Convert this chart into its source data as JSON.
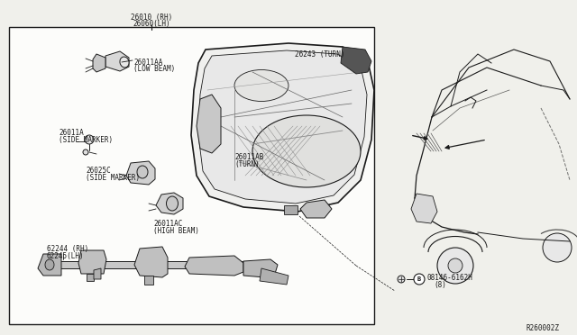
{
  "bg_color": "#f0f0eb",
  "box_bg": "#ffffff",
  "line_color": "#1a1a1a",
  "text_color": "#1a1a1a",
  "font_size": 5.5,
  "ref_number": "R260002Z",
  "labels": {
    "top": [
      "26010 (RH)",
      "26060(LH)"
    ],
    "low_beam": [
      "26011AA",
      "(LOW BEAM)"
    ],
    "turn1": [
      "26243 (TURN)"
    ],
    "turn2": [
      "26011AB",
      "(TURN)"
    ],
    "side_marker1": [
      "26011A",
      "(SIDE MARKER)"
    ],
    "side_marker2": [
      "26025C",
      "(SIDE MARKER)"
    ],
    "high_beam": [
      "26011AC",
      "(HIGH BEAM)"
    ],
    "bracket": [
      "62244 (RH)",
      "62245(LH)"
    ],
    "bolt": [
      "08146-6162H",
      "(8)"
    ]
  }
}
